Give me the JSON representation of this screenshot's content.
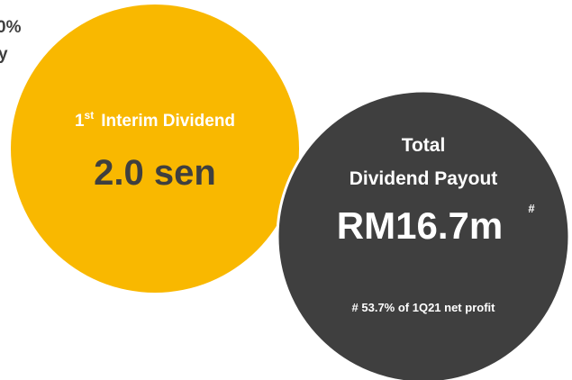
{
  "fragments": [
    "0%",
    "y"
  ],
  "interim": {
    "number": "1",
    "suffix": "st",
    "label": "Interim Dividend",
    "value": "2.0 sen"
  },
  "total": {
    "line1": "Total",
    "line2": "Dividend Payout",
    "value": "RM16.7m",
    "marker": "#",
    "note": "# 53.7% of 1Q21 net profit"
  }
}
